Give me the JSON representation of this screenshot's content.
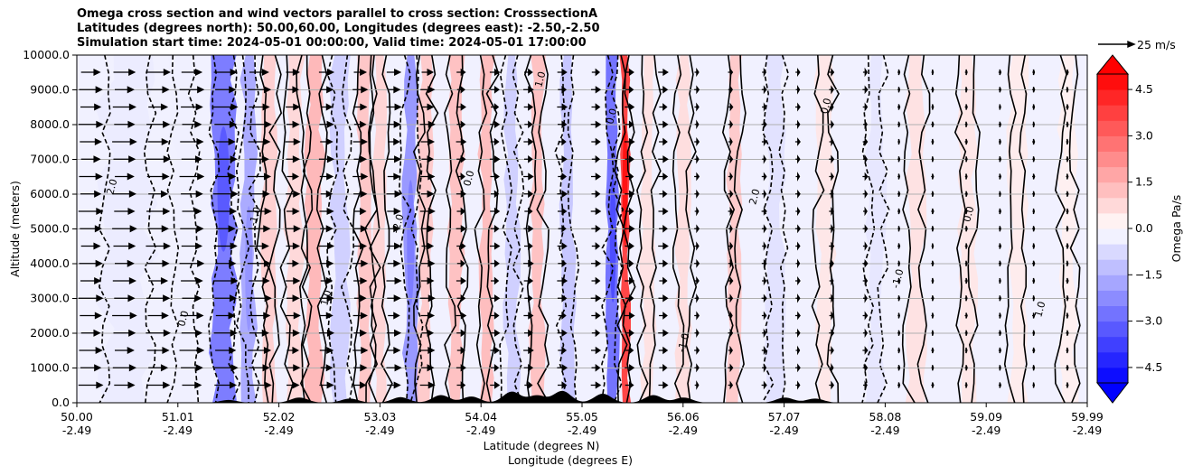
{
  "chart_data": {
    "type": "heatmap",
    "title_lines": [
      "Omega cross section and wind vectors parallel to cross section: CrosssectionA",
      "Latitudes (degrees north): 50.00,60.00, Longitudes (degrees east): -2.50,-2.50",
      "Simulation start time: 2024-05-01 00:00:00, Valid time: 2024-05-01 17:00:00"
    ],
    "xlabel_lines": [
      "Latitude (degrees N)",
      "Longitude (degrees E)"
    ],
    "ylabel": "Altitude (meters)",
    "xlim": [
      50.0,
      59.99
    ],
    "ylim": [
      0,
      10000
    ],
    "x_ticks": [
      {
        "lat": "50.00",
        "lon": "-2.49"
      },
      {
        "lat": "51.01",
        "lon": "-2.49"
      },
      {
        "lat": "52.02",
        "lon": "-2.49"
      },
      {
        "lat": "53.03",
        "lon": "-2.49"
      },
      {
        "lat": "54.04",
        "lon": "-2.49"
      },
      {
        "lat": "55.05",
        "lon": "-2.49"
      },
      {
        "lat": "56.06",
        "lon": "-2.49"
      },
      {
        "lat": "57.07",
        "lon": "-2.49"
      },
      {
        "lat": "58.08",
        "lon": "-2.49"
      },
      {
        "lat": "59.09",
        "lon": "-2.49"
      },
      {
        "lat": "59.99",
        "lon": "-2.49"
      }
    ],
    "y_ticks": [
      "0.0",
      "1000.0",
      "2000.0",
      "3000.0",
      "4000.0",
      "5000.0",
      "6000.0",
      "7000.0",
      "8000.0",
      "9000.0",
      "10000.0"
    ],
    "y_tick_values": [
      0,
      1000,
      2000,
      3000,
      4000,
      5000,
      6000,
      7000,
      8000,
      9000,
      10000
    ],
    "grid": true,
    "colorbar": {
      "label": "Omega Pa/s",
      "range": [
        -5.0,
        5.0
      ],
      "ticks": [
        "−4.5",
        "−3.0",
        "−1.5",
        "0.0",
        "1.5",
        "3.0",
        "4.5"
      ],
      "tick_values": [
        -4.5,
        -3.0,
        -1.5,
        0.0,
        1.5,
        3.0,
        4.5
      ],
      "extend": "both",
      "colormap": "bwr"
    },
    "quiver_key": {
      "label": "25 m/s",
      "speed": 25
    },
    "contour_labels": [
      "2.0",
      "0.0",
      "-1.0",
      "1.0",
      "-2.0",
      "0.0",
      "1.0",
      "0.0",
      "-1.0",
      "2.0",
      "0.0",
      "-1.0",
      "0.0",
      "1.0"
    ],
    "omega_bands": [
      {
        "lat": 50.5,
        "width": 0.45,
        "value": -0.4
      },
      {
        "lat": 51.05,
        "width": 0.2,
        "value": -0.3
      },
      {
        "lat": 51.45,
        "width": 0.2,
        "value": -2.8
      },
      {
        "lat": 51.7,
        "width": 0.12,
        "value": -1.8
      },
      {
        "lat": 51.9,
        "width": 0.12,
        "value": 1.0
      },
      {
        "lat": 52.15,
        "width": 0.15,
        "value": 0.8
      },
      {
        "lat": 52.35,
        "width": 0.15,
        "value": 1.5
      },
      {
        "lat": 52.6,
        "width": 0.15,
        "value": -1.0
      },
      {
        "lat": 52.85,
        "width": 0.12,
        "value": 1.2
      },
      {
        "lat": 53.0,
        "width": 0.12,
        "value": 0.9
      },
      {
        "lat": 53.3,
        "width": 0.12,
        "value": -2.2
      },
      {
        "lat": 53.45,
        "width": 0.12,
        "value": 1.1
      },
      {
        "lat": 53.75,
        "width": 0.12,
        "value": 1.3
      },
      {
        "lat": 54.05,
        "width": 0.12,
        "value": 1.4
      },
      {
        "lat": 54.3,
        "width": 0.12,
        "value": -1.0
      },
      {
        "lat": 54.55,
        "width": 0.12,
        "value": 1.3
      },
      {
        "lat": 54.85,
        "width": 0.12,
        "value": -1.2
      },
      {
        "lat": 55.3,
        "width": 0.1,
        "value": -3.0
      },
      {
        "lat": 55.42,
        "width": 0.08,
        "value": 4.0
      },
      {
        "lat": 55.65,
        "width": 0.12,
        "value": 0.6
      },
      {
        "lat": 56.0,
        "width": 0.12,
        "value": 0.7
      },
      {
        "lat": 56.5,
        "width": 0.12,
        "value": 1.1
      },
      {
        "lat": 56.9,
        "width": 0.15,
        "value": -0.6
      },
      {
        "lat": 57.4,
        "width": 0.15,
        "value": 0.5
      },
      {
        "lat": 57.9,
        "width": 0.15,
        "value": -0.5
      },
      {
        "lat": 58.3,
        "width": 0.15,
        "value": 0.6
      },
      {
        "lat": 58.8,
        "width": 0.15,
        "value": 0.5
      },
      {
        "lat": 59.3,
        "width": 0.15,
        "value": 0.4
      },
      {
        "lat": 59.8,
        "width": 0.15,
        "value": 0.3
      }
    ],
    "terrain_peaks": [
      {
        "lat": 51.5,
        "height": 80
      },
      {
        "lat": 52.2,
        "height": 150
      },
      {
        "lat": 52.7,
        "height": 120
      },
      {
        "lat": 53.2,
        "height": 160
      },
      {
        "lat": 53.6,
        "height": 220
      },
      {
        "lat": 53.9,
        "height": 180
      },
      {
        "lat": 54.3,
        "height": 320
      },
      {
        "lat": 54.55,
        "height": 210
      },
      {
        "lat": 54.8,
        "height": 340
      },
      {
        "lat": 55.2,
        "height": 260
      },
      {
        "lat": 55.7,
        "height": 220
      },
      {
        "lat": 56.0,
        "height": 150
      },
      {
        "lat": 57.0,
        "height": 150
      },
      {
        "lat": 57.3,
        "height": 120
      }
    ],
    "wind_profile": [
      {
        "lat_min": 50.0,
        "lat_max": 51.9,
        "speed": 15
      },
      {
        "lat_min": 51.9,
        "lat_max": 53.5,
        "speed": 9
      },
      {
        "lat_min": 53.5,
        "lat_max": 56.0,
        "speed": 6
      },
      {
        "lat_min": 56.0,
        "lat_max": 58.0,
        "speed": 3
      },
      {
        "lat_min": 58.0,
        "lat_max": 60.0,
        "speed": 1.5
      }
    ]
  }
}
